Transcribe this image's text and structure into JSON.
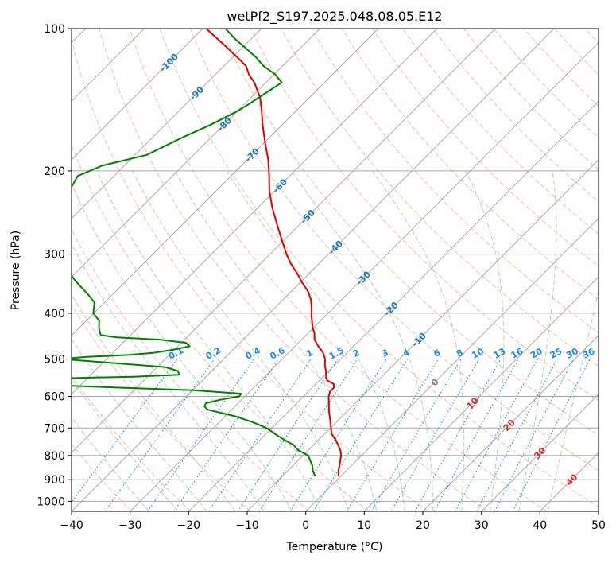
{
  "chart_data": {
    "type": "line",
    "title": "wetPf2_S197.2025.048.08.05.E12",
    "xlabel": "Temperature (°C)",
    "ylabel": "Pressure (hPa)",
    "xlim": [
      -40,
      50
    ],
    "ylim": [
      1050,
      100
    ],
    "y_log_scale": true,
    "grid": true,
    "x_ticks": [
      "−40",
      "−30",
      "−20",
      "−10",
      "0",
      "10",
      "20",
      "30",
      "40",
      "50"
    ],
    "x_tick_values": [
      -40,
      -30,
      -20,
      -10,
      0,
      10,
      20,
      30,
      40,
      50
    ],
    "y_ticks": [
      "100",
      "200",
      "300",
      "400",
      "500",
      "600",
      "700",
      "800",
      "900",
      "1000"
    ],
    "y_tick_values": [
      100,
      200,
      300,
      400,
      500,
      600,
      700,
      800,
      900,
      1000
    ],
    "isotherm_labels": [
      {
        "t": -100,
        "text": "-100"
      },
      {
        "t": -90,
        "text": "-90"
      },
      {
        "t": -80,
        "text": "-80"
      },
      {
        "t": -70,
        "text": "-70"
      },
      {
        "t": -60,
        "text": "-60"
      },
      {
        "t": -50,
        "text": "-50"
      },
      {
        "t": -40,
        "text": "-40"
      },
      {
        "t": -30,
        "text": "-30"
      },
      {
        "t": -20,
        "text": "-20"
      },
      {
        "t": -10,
        "text": "-10"
      },
      {
        "t": 0,
        "text": "0"
      },
      {
        "t": 10,
        "text": "10"
      },
      {
        "t": 20,
        "text": "20"
      },
      {
        "t": 30,
        "text": "30"
      },
      {
        "t": 40,
        "text": "40"
      }
    ],
    "mixing_ratio_labels": [
      "0.1",
      "0.2",
      "0.4",
      "0.6",
      "1",
      "1.5",
      "2",
      "3",
      "4",
      "6",
      "8",
      "10",
      "13",
      "16",
      "20",
      "25",
      "30",
      "36"
    ],
    "mixing_ratio_values": [
      0.1,
      0.2,
      0.4,
      0.6,
      1,
      1.5,
      2,
      3,
      4,
      6,
      8,
      10,
      13,
      16,
      20,
      25,
      30,
      36
    ],
    "colors": {
      "temperature": "#e00000",
      "dewpoint": "#008000",
      "isotherm": "#a9a9a9",
      "isobar": "#a9a9a9",
      "dry_adiabat": "#f4a582",
      "moist_adiabat": "#8fc98f",
      "mixing_ratio": "#1e88e5",
      "isotherm_label_cold": "#1f77b4",
      "isotherm_label_warm": "#d62728",
      "isotherm_label_zero": "#7f7f7f"
    },
    "series": [
      {
        "name": "Temperature",
        "p": [
          885,
          860,
          830,
          800,
          780,
          760,
          740,
          720,
          700,
          680,
          660,
          640,
          620,
          600,
          585,
          575,
          565,
          555,
          545,
          530,
          515,
          500,
          485,
          470,
          455,
          440,
          430,
          420,
          405,
          390,
          375,
          360,
          345,
          330,
          315,
          300,
          280,
          260,
          240,
          220,
          205,
          190,
          175,
          160,
          150,
          140,
          130,
          125,
          120,
          115,
          110,
          105,
          100
        ],
        "t": [
          -0.4,
          -1.4,
          -2.4,
          -3.5,
          -4.5,
          -5.8,
          -7.2,
          -8.8,
          -9.9,
          -11.0,
          -12.2,
          -13.4,
          -14.5,
          -15.7,
          -16.3,
          -16.3,
          -16.9,
          -18.7,
          -19.5,
          -20.5,
          -21.7,
          -22.7,
          -24.1,
          -26.0,
          -27.8,
          -29.0,
          -30.1,
          -31.0,
          -32.4,
          -33.7,
          -35.2,
          -37.1,
          -39.6,
          -42.0,
          -44.7,
          -47.2,
          -50.4,
          -53.8,
          -57.4,
          -61.0,
          -63.5,
          -66.3,
          -69.7,
          -73.3,
          -75.7,
          -78.4,
          -82.0,
          -84.3,
          -86.2,
          -89.2,
          -92.4,
          -95.8,
          -99.4
        ]
      },
      {
        "name": "Dewpoint",
        "p": [
          885,
          860,
          840,
          820,
          800,
          780,
          760,
          740,
          720,
          700,
          680,
          660,
          640,
          630,
          620,
          610,
          600,
          592,
          582,
          575,
          570,
          565,
          560,
          556,
          553,
          551,
          550,
          548,
          545,
          540,
          530,
          520,
          510,
          500,
          495,
          490,
          485,
          478,
          470,
          462,
          455,
          450,
          445,
          430,
          415,
          400,
          380,
          365,
          355,
          340,
          320,
          300,
          280,
          260,
          240,
          220,
          205,
          195,
          185,
          170,
          160,
          150,
          145,
          135,
          130,
          125,
          120,
          115,
          110,
          105,
          100
        ],
        "t": [
          -4.4,
          -5.8,
          -6.7,
          -7.9,
          -9.1,
          -11.7,
          -13.4,
          -16.0,
          -18.5,
          -20.9,
          -24.3,
          -28.5,
          -34.1,
          -35.2,
          -35.5,
          -33.7,
          -31.0,
          -31.1,
          -39.9,
          -52.5,
          -61.2,
          -67.5,
          -71.2,
          -73.1,
          -72.2,
          -66.7,
          -64.9,
          -61.0,
          -52.5,
          -44.9,
          -45.8,
          -48.7,
          -58.0,
          -67.8,
          -64.0,
          -56.8,
          -53.0,
          -50.3,
          -48.0,
          -49.2,
          -54.2,
          -61.9,
          -65.1,
          -66.6,
          -67.8,
          -70.1,
          -71.7,
          -74.2,
          -76.1,
          -79.0,
          -82.6,
          -85.6,
          -88.3,
          -90.9,
          -92.8,
          -95.1,
          -96.2,
          -93.8,
          -88.0,
          -84.9,
          -82.3,
          -80.1,
          -79.3,
          -78.0,
          -77.3,
          -79.8,
          -83.2,
          -86.0,
          -89.3,
          -92.8,
          -96.1
        ]
      }
    ]
  }
}
